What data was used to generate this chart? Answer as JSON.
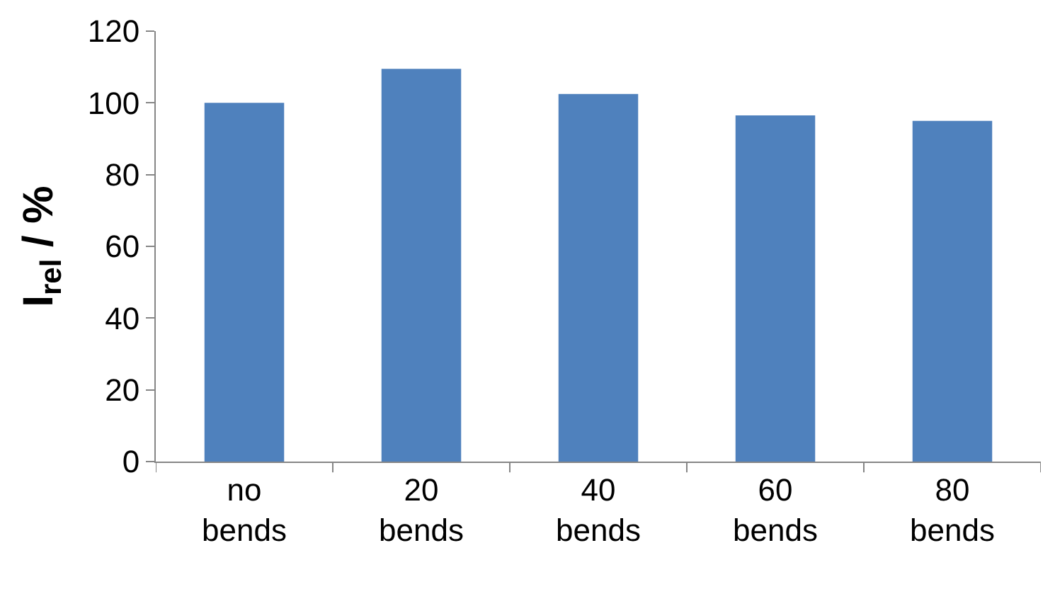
{
  "chart_data": {
    "type": "bar",
    "categories": [
      "no bends",
      "20 bends",
      "40 bends",
      "60 bends",
      "80 bends"
    ],
    "values": [
      100,
      109.5,
      102.5,
      96.5,
      95
    ],
    "color": "#4f81bd",
    "ylabel": "I$_{rel}$ / %",
    "ylim": [
      0,
      120
    ],
    "yticks": [
      0,
      20,
      40,
      60,
      80,
      100,
      120
    ]
  }
}
